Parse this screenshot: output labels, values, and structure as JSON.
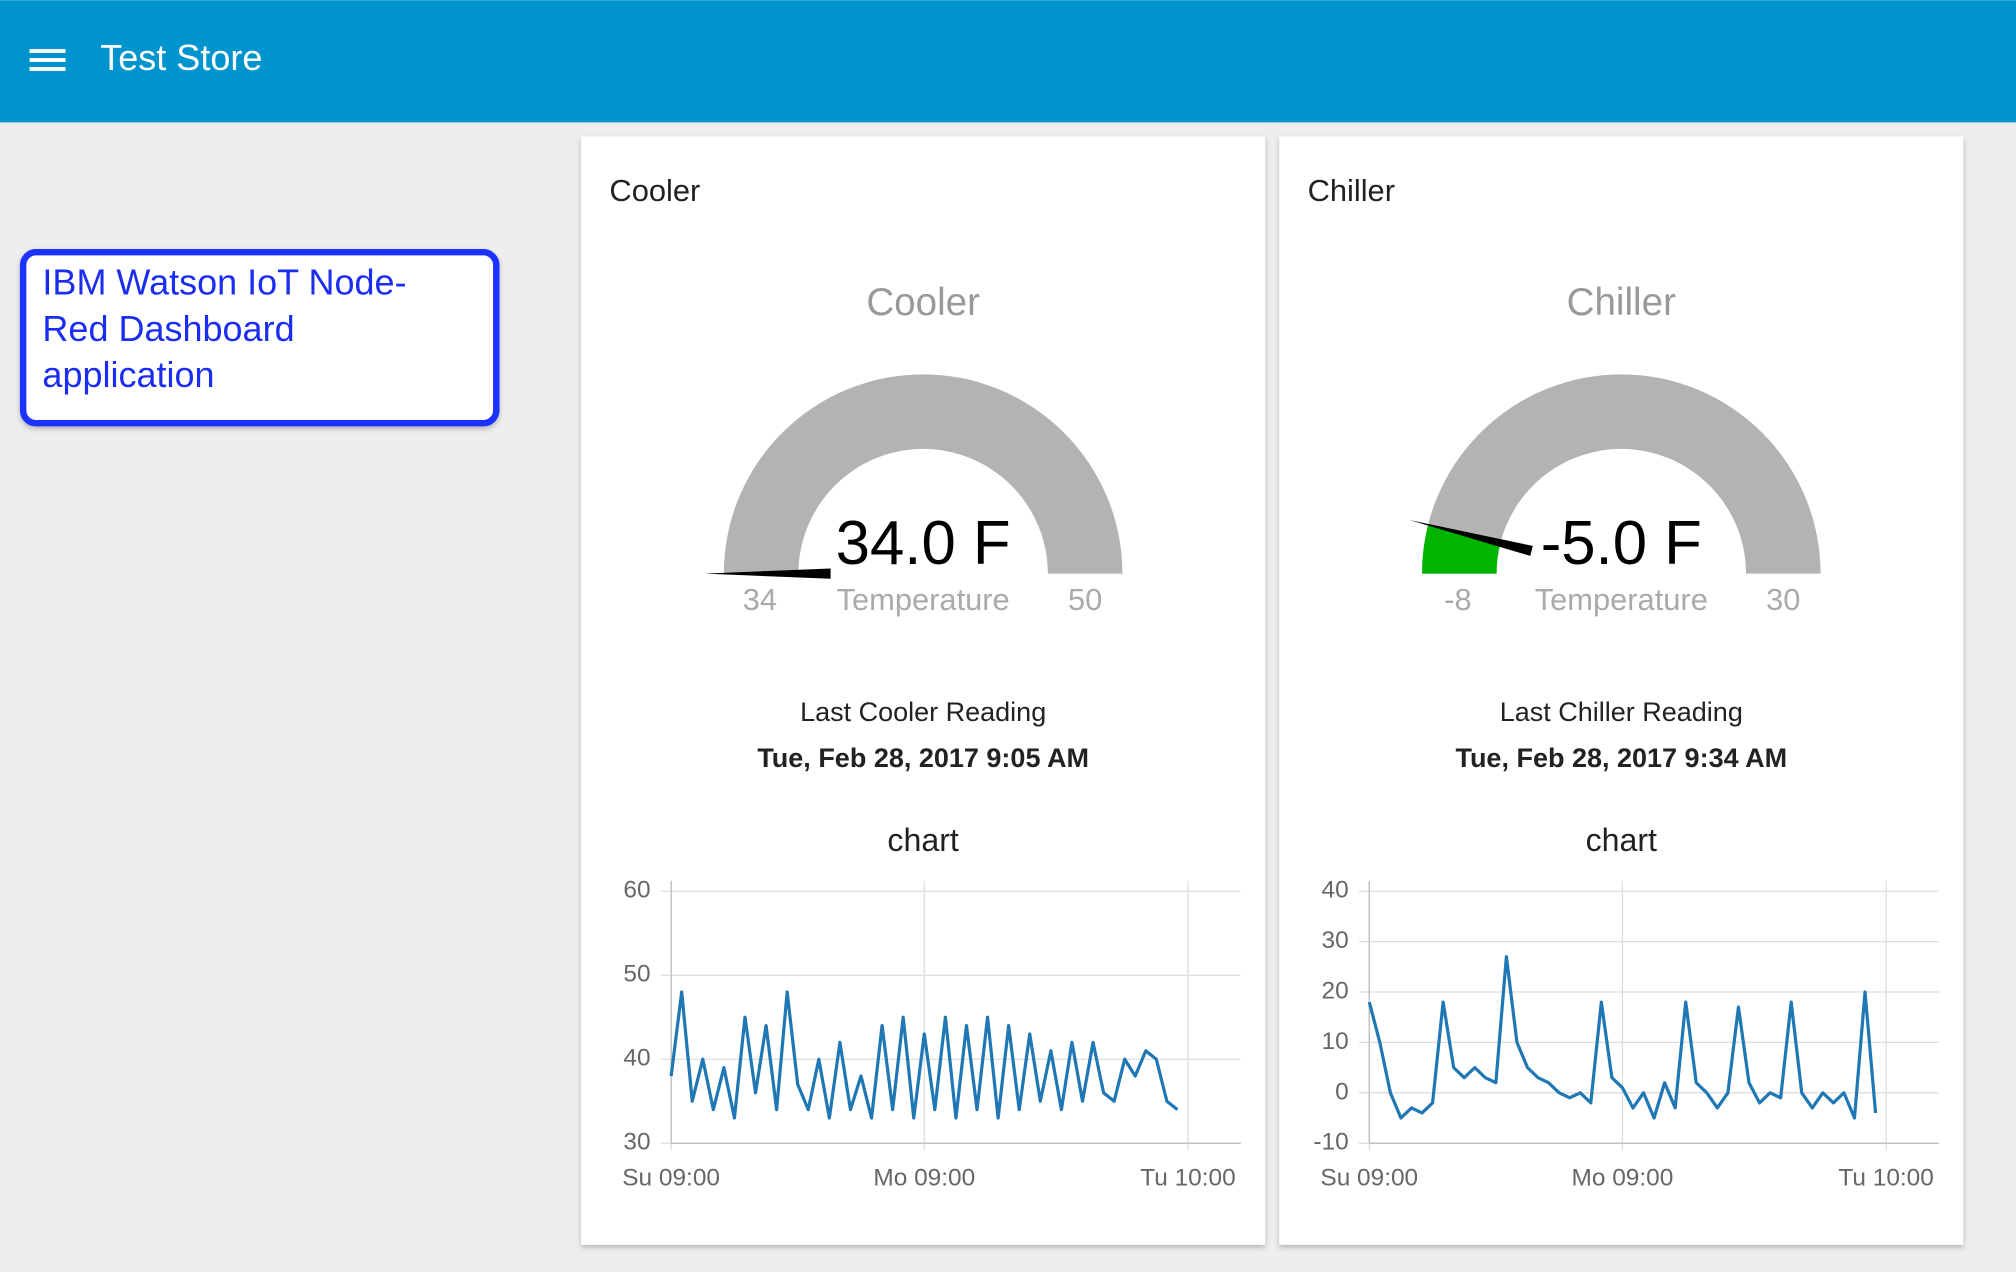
{
  "header": {
    "title": "Test Store"
  },
  "callout": {
    "text": "IBM Watson IoT Node-Red Dashboard application"
  },
  "cards": [
    {
      "title": "Cooler",
      "gauge": {
        "title": "Cooler",
        "value": 34.0,
        "value_label": "34.0 F",
        "label": "Temperature",
        "min": 34,
        "max": 50,
        "color": "#00b500"
      },
      "reading_label": "Last Cooler Reading",
      "reading_time": "Tue, Feb 28, 2017 9:05 AM",
      "chart": {
        "type": "line",
        "title": "chart",
        "color": "#1f77b4",
        "x": [
          0,
          1,
          2,
          3,
          4,
          5,
          6,
          7,
          8,
          9,
          10,
          11,
          12,
          13,
          14,
          15,
          16,
          17,
          18,
          19,
          20,
          21,
          22,
          23,
          24,
          25,
          26,
          27,
          28,
          29,
          30,
          31,
          32,
          33,
          34,
          35,
          36,
          37,
          38,
          39,
          40,
          41,
          42,
          43,
          44,
          45,
          46,
          47,
          48
        ],
        "values": [
          38,
          48,
          35,
          40,
          34,
          39,
          33,
          45,
          36,
          44,
          34,
          48,
          37,
          34,
          40,
          33,
          42,
          34,
          38,
          33,
          44,
          34,
          45,
          33,
          43,
          34,
          45,
          33,
          44,
          34,
          45,
          33,
          44,
          34,
          43,
          35,
          41,
          34,
          42,
          35,
          42,
          36,
          35,
          40,
          38,
          41,
          40,
          35,
          34
        ],
        "xlim": [
          0,
          54
        ],
        "ylim": [
          30,
          60
        ],
        "yticks": [
          30,
          40,
          50,
          60
        ],
        "xticks": [
          {
            "value": 0,
            "label": "Su 09:00"
          },
          {
            "value": 24,
            "label": "Mo 09:00"
          },
          {
            "value": 49,
            "label": "Tu 10:00"
          }
        ],
        "grid": true
      }
    },
    {
      "title": "Chiller",
      "gauge": {
        "title": "Chiller",
        "value": -5.0,
        "value_label": "-5.0 F",
        "label": "Temperature",
        "min": -8,
        "max": 30,
        "color": "#00b500"
      },
      "reading_label": "Last Chiller Reading",
      "reading_time": "Tue, Feb 28, 2017 9:34 AM",
      "chart": {
        "type": "line",
        "title": "chart",
        "color": "#1f77b4",
        "x": [
          0,
          1,
          2,
          3,
          4,
          5,
          6,
          7,
          8,
          9,
          10,
          11,
          12,
          13,
          14,
          15,
          16,
          17,
          18,
          19,
          20,
          21,
          22,
          23,
          24,
          25,
          26,
          27,
          28,
          29,
          30,
          31,
          32,
          33,
          34,
          35,
          36,
          37,
          38,
          39,
          40,
          41,
          42,
          43,
          44,
          45,
          46,
          47,
          48
        ],
        "values": [
          18,
          10,
          0,
          -5,
          -3,
          -4,
          -2,
          18,
          5,
          3,
          5,
          3,
          2,
          27,
          10,
          5,
          3,
          2,
          0,
          -1,
          0,
          -2,
          18,
          3,
          1,
          -3,
          0,
          -5,
          2,
          -3,
          18,
          2,
          0,
          -3,
          0,
          17,
          2,
          -2,
          0,
          -1,
          18,
          0,
          -3,
          0,
          -2,
          0,
          -5,
          20,
          -4
        ],
        "xlim": [
          0,
          54
        ],
        "ylim": [
          -10,
          40
        ],
        "yticks": [
          -10,
          0,
          10,
          20,
          30,
          40
        ],
        "xticks": [
          {
            "value": 0,
            "label": "Su 09:00"
          },
          {
            "value": 24,
            "label": "Mo 09:00"
          },
          {
            "value": 49,
            "label": "Tu 10:00"
          }
        ],
        "grid": true
      }
    }
  ]
}
